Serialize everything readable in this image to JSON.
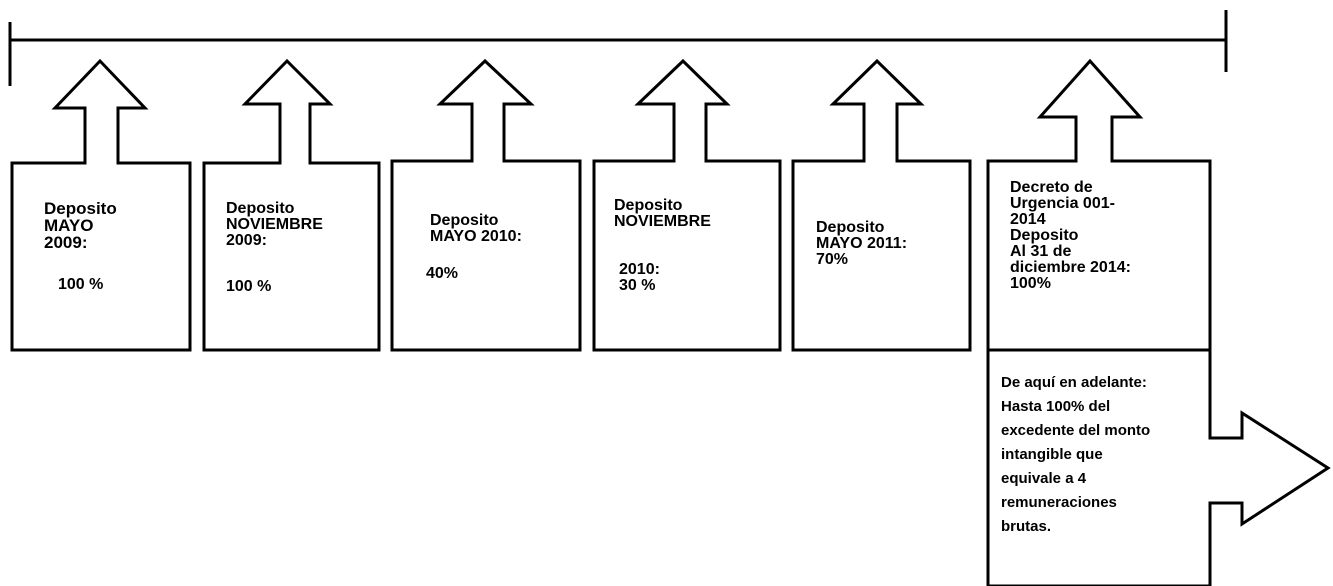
{
  "colors": {
    "line": "#000000",
    "fill": "#ffffff",
    "text": "#000000"
  },
  "timeline": {
    "boxes": [
      {
        "title": "Deposito\nMAYO\n2009:",
        "value": "100 %"
      },
      {
        "title": "Deposito\nNOVIEMBRE\n2009:",
        "value": "100 %"
      },
      {
        "title": "Deposito\nMAYO 2010:",
        "value": "40%"
      },
      {
        "title": "Deposito\nNOVIEMBRE",
        "value": "2010:\n30 %"
      },
      {
        "title": "Deposito\nMAYO 2011:\n70%"
      },
      {
        "title": "Decreto de\nUrgencia 001-\n2014\nDeposito\nAl 31 de\ndiciembre 2014:\n100%"
      }
    ],
    "future": {
      "text": "De aquí en adelante:\nHasta 100% del\nexcedente del monto\nintangible que\nequivale a 4\nremuneraciones\nbrutas."
    }
  }
}
